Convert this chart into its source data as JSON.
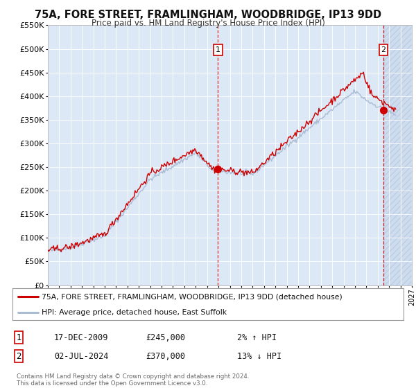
{
  "title": "75A, FORE STREET, FRAMLINGHAM, WOODBRIDGE, IP13 9DD",
  "subtitle": "Price paid vs. HM Land Registry's House Price Index (HPI)",
  "legend_house": "75A, FORE STREET, FRAMLINGHAM, WOODBRIDGE, IP13 9DD (detached house)",
  "legend_hpi": "HPI: Average price, detached house, East Suffolk",
  "sale1_date": "17-DEC-2009",
  "sale1_price": "£245,000",
  "sale1_hpi": "2% ↑ HPI",
  "sale2_date": "02-JUL-2024",
  "sale2_price": "£370,000",
  "sale2_hpi": "13% ↓ HPI",
  "footer1": "Contains HM Land Registry data © Crown copyright and database right 2024.",
  "footer2": "This data is licensed under the Open Government Licence v3.0.",
  "house_color": "#cc0000",
  "hpi_color": "#aabbd4",
  "background_color": "#ffffff",
  "plot_bg": "#dce8f5",
  "hatched_bg": "#c8d8ec",
  "marker_color": "#cc0000",
  "dashed_vline_color": "#cc0000",
  "ylim": [
    0,
    550000
  ],
  "yticks": [
    0,
    50000,
    100000,
    150000,
    200000,
    250000,
    300000,
    350000,
    400000,
    450000,
    500000,
    550000
  ],
  "sale1_x": 2009.96,
  "sale1_y": 245000,
  "sale2_x": 2024.5,
  "sale2_y": 370000,
  "xmin": 1995,
  "xmax": 2027
}
